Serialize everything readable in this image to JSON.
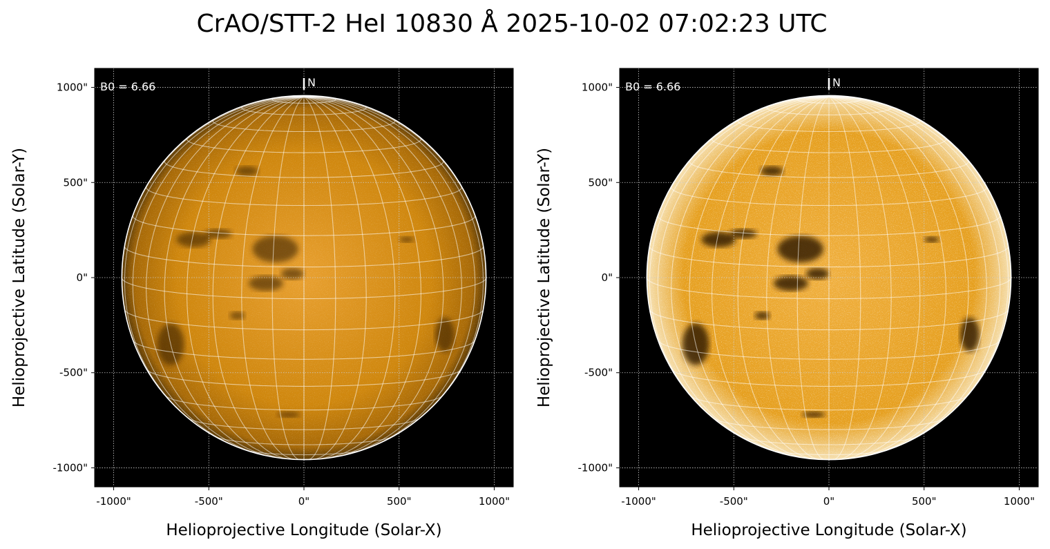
{
  "title": "CrAO/STT-2 HeI 10830 Å 2025-10-02 07:02:23 UTC",
  "chart_data": [
    {
      "type": "image",
      "panel": "left",
      "title": "",
      "xlabel": "Helioprojective Longitude (Solar-X)",
      "ylabel": "Helioprojective Latitude (Solar-Y)",
      "xlim": [
        -1100,
        1100
      ],
      "ylim": [
        -1100,
        1100
      ],
      "xticks": [
        -1000,
        -500,
        0,
        500,
        1000
      ],
      "yticks": [
        -1000,
        -500,
        0,
        500,
        1000
      ],
      "xtick_labels": [
        "-1000\"",
        "-500\"",
        "0\"",
        "500\"",
        "1000\""
      ],
      "ytick_labels": [
        "-1000\"",
        "-500\"",
        "0\"",
        "500\"",
        "1000\""
      ],
      "annotation": "B0 = 6.66",
      "north_label": "N",
      "solar_radius_arcsec": 957,
      "b0_deg": 6.66,
      "grid_spacing_deg": 10,
      "grid": true,
      "colormap_color": "#d08a10",
      "stretch": "linear"
    },
    {
      "type": "image",
      "panel": "right",
      "title": "",
      "xlabel": "Helioprojective Longitude (Solar-X)",
      "ylabel": "Helioprojective Latitude (Solar-Y)",
      "xlim": [
        -1100,
        1100
      ],
      "ylim": [
        -1100,
        1100
      ],
      "xticks": [
        -1000,
        -500,
        0,
        500,
        1000
      ],
      "yticks": [
        -1000,
        -500,
        0,
        500,
        1000
      ],
      "xtick_labels": [
        "-1000\"",
        "-500\"",
        "0\"",
        "500\"",
        "1000\""
      ],
      "ytick_labels": [
        "-1000\"",
        "-500\"",
        "0\"",
        "500\"",
        "1000\""
      ],
      "annotation": "B0 = 6.66",
      "north_label": "N",
      "solar_radius_arcsec": 957,
      "b0_deg": 6.66,
      "grid_spacing_deg": 10,
      "grid": true,
      "colormap_color": "#e09a18",
      "stretch": "saturated"
    }
  ]
}
